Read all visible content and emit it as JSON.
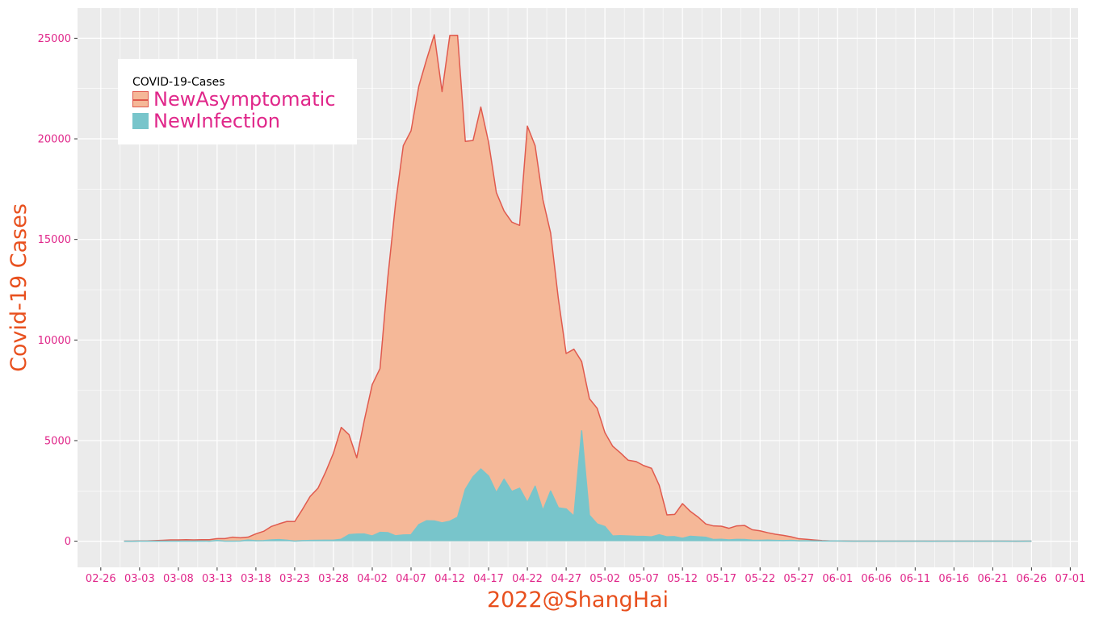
{
  "chart_data": {
    "type": "area",
    "xlabel": "2022@ShangHai",
    "ylabel": "Covid-19 Cases",
    "ylim": [
      -1300,
      26500
    ],
    "xlim": [
      "2022-02-23",
      "2022-07-02"
    ],
    "yticks": [
      0,
      5000,
      10000,
      15000,
      20000,
      25000
    ],
    "xticks": [
      "02-26",
      "03-03",
      "03-08",
      "03-13",
      "03-18",
      "03-23",
      "03-28",
      "04-02",
      "04-07",
      "04-12",
      "04-17",
      "04-22",
      "04-27",
      "05-02",
      "05-07",
      "05-12",
      "05-17",
      "05-22",
      "05-27",
      "06-01",
      "06-06",
      "06-11",
      "06-16",
      "06-21",
      "06-26",
      "07-01"
    ],
    "grid": true,
    "legend": {
      "title": "COVID-19-Cases",
      "placement": "top-left"
    },
    "colors": {
      "panel": "#EBEBEB",
      "grid": "#FFFFFF",
      "tick_text": "#E0278A",
      "axis_title": "#E8501E",
      "asymptomatic_fill": "#F5B898",
      "asymptomatic_line": "#E05A4E",
      "infection_fill": "#78C5CB",
      "legend_label": "#E0278A"
    },
    "x_start": "2022-03-01",
    "x_end": "2022-06-26",
    "series": [
      {
        "name": "NewAsymptomatic",
        "values": [
          2,
          3,
          14,
          16,
          28,
          45,
          62,
          64,
          76,
          64,
          76,
          76,
          130,
          128,
          202,
          169,
          203,
          366,
          492,
          734,
          865,
          981,
          977,
          1582,
          2231,
          2631,
          3450,
          4381,
          5656,
          5298,
          4144,
          6051,
          7788,
          8581,
          13086,
          16766,
          19660,
          20398,
          22609,
          23937,
          25173,
          22348,
          25141,
          25146,
          19872,
          19923,
          21582,
          19831,
          17332,
          16407,
          15861,
          15698,
          20634,
          19657,
          16983,
          15319,
          12037,
          9330,
          9545,
          8932,
          7084,
          6606,
          5395,
          4722,
          4390,
          4024,
          3961,
          3760,
          3625,
          2780,
          1305,
          1333,
          1869,
          1487,
          1203,
          858,
          759,
          746,
          642,
          763,
          783,
          570,
          517,
          422,
          343,
          290,
          219,
          122,
          93,
          58,
          31,
          14,
          10,
          8,
          5,
          4,
          3,
          3,
          4,
          5,
          2,
          3,
          4,
          3,
          4,
          6,
          4,
          3,
          4,
          5,
          3,
          4,
          3,
          2,
          2,
          1,
          2,
          3
        ],
        "color": "#E05A4E"
      },
      {
        "name": "NewInfection",
        "values": [
          1,
          1,
          2,
          3,
          5,
          3,
          2,
          4,
          5,
          5,
          11,
          1,
          41,
          5,
          4,
          8,
          57,
          24,
          31,
          65,
          81,
          50,
          4,
          29,
          38,
          45,
          51,
          50,
          96,
          326,
          355,
          358,
          260,
          438,
          425,
          268,
          311,
          322,
          824,
          1015,
          1006,
          914,
          994,
          1189,
          2573,
          3200,
          3590,
          3238,
          2417,
          3084,
          2472,
          2634,
          1931,
          2736,
          1527,
          2494,
          1661,
          1606,
          1249,
          5487,
          1292,
          858,
          727,
          260,
          274,
          261,
          245,
          240,
          215,
          322,
          217,
          227,
          144,
          245,
          219,
          194,
          82,
          96,
          63,
          87,
          84,
          49,
          46,
          55,
          41,
          31,
          45,
          17,
          22,
          15,
          11,
          10,
          12,
          6,
          4,
          3,
          4,
          4,
          5,
          3,
          4,
          2,
          3,
          2,
          1,
          3,
          4,
          2,
          3,
          2,
          3,
          2,
          3,
          2,
          1,
          2,
          1,
          3
        ],
        "color": "#78C5CB"
      }
    ]
  }
}
